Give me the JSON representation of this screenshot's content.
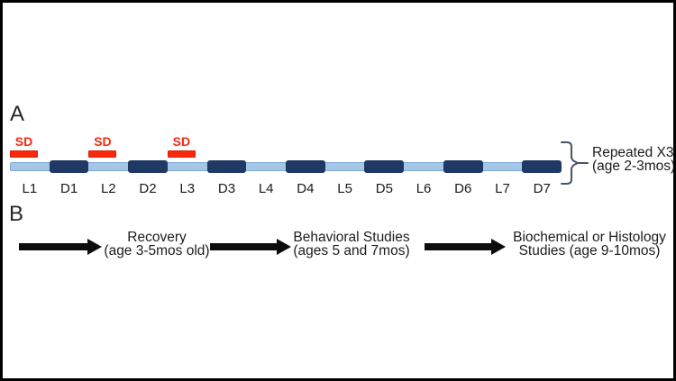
{
  "colors": {
    "light_blue": "#A4C7E8",
    "dark_blue": "#1F3864",
    "red": "#F8290F",
    "red_border": "#D92100",
    "bracket": "#44546A",
    "arrow_black": "#0d0d0d"
  },
  "panel_a": {
    "label": "A",
    "sd_marker_label": "SD",
    "segments": [
      {
        "label": "L1",
        "type": "light",
        "sd": true
      },
      {
        "label": "D1",
        "type": "dark"
      },
      {
        "label": "L2",
        "type": "light",
        "sd": true
      },
      {
        "label": "D2",
        "type": "dark"
      },
      {
        "label": "L3",
        "type": "light",
        "sd": true
      },
      {
        "label": "D3",
        "type": "dark"
      },
      {
        "label": "L4",
        "type": "light"
      },
      {
        "label": "D4",
        "type": "dark"
      },
      {
        "label": "L5",
        "type": "light"
      },
      {
        "label": "D5",
        "type": "dark"
      },
      {
        "label": "L6",
        "type": "light"
      },
      {
        "label": "D6",
        "type": "dark"
      },
      {
        "label": "L7",
        "type": "light"
      },
      {
        "label": "D7",
        "type": "dark"
      }
    ],
    "bracket_note": {
      "line1": "Repeated X3",
      "line2": "(age 2-3mos)"
    }
  },
  "panel_b": {
    "label": "B",
    "steps": [
      {
        "title": "Recovery",
        "subtitle": "(age 3-5mos old)"
      },
      {
        "title": "Behavioral Studies",
        "subtitle": "(ages 5 and 7mos)"
      },
      {
        "title": "Biochemical or Histology",
        "subtitle": "Studies (age 9-10mos)"
      }
    ]
  }
}
